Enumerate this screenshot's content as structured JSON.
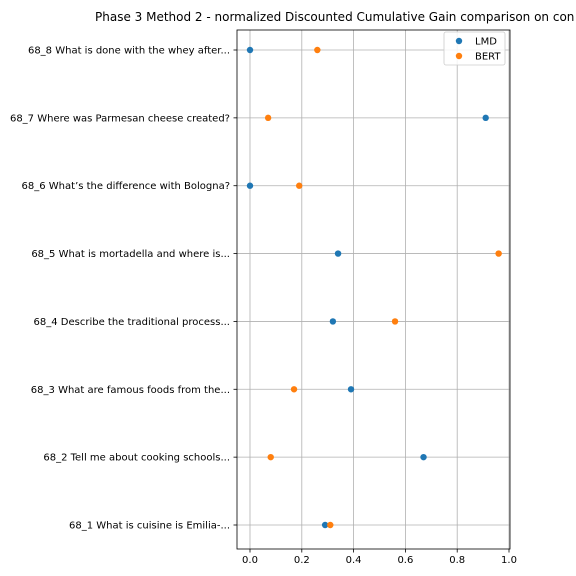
{
  "chart_data": {
    "type": "scatter",
    "title": "Phase 3 Method 2 - normalized Discounted Cumulative Gain comparison on con",
    "categories": [
      "68_1 What is cuisine is Emilia-...",
      "68_2 Tell me about cooking schools...",
      "68_3 What are famous foods from the...",
      "68_4 Describe the traditional process...",
      "68_5 What is mortadella and where is...",
      "68_6 What’s the difference with Bologna?",
      "68_7 Where was Parmesan cheese created?",
      "68_8 What is done with the whey after..."
    ],
    "series": [
      {
        "name": "LMD",
        "color": "#1f77b4",
        "values": [
          0.29,
          0.67,
          0.39,
          0.32,
          0.34,
          0.0,
          0.91,
          0.0
        ]
      },
      {
        "name": "BERT",
        "color": "#ff7f0e",
        "values": [
          0.31,
          0.08,
          0.17,
          0.56,
          0.96,
          0.19,
          0.07,
          0.26
        ]
      }
    ],
    "xlim": [
      0.0,
      1.0
    ],
    "xticks": [
      "0.0",
      "0.2",
      "0.4",
      "0.6",
      "0.8",
      "1.0"
    ],
    "xlabel": "",
    "ylabel": "",
    "grid": true,
    "legend_position": "top-right"
  }
}
